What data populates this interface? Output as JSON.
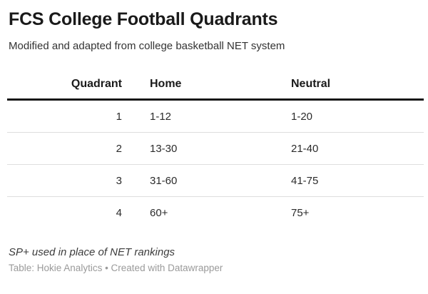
{
  "header": {
    "title": "FCS College Football Quadrants",
    "subtitle": "Modified and adapted from college basketball NET system"
  },
  "table": {
    "headers": [
      "Quadrant",
      "Home",
      "Neutral"
    ],
    "rows": [
      [
        "1",
        "1-12",
        "1-20"
      ],
      [
        "2",
        "13-30",
        "21-40"
      ],
      [
        "3",
        "31-60",
        "41-75"
      ],
      [
        "4",
        "60+",
        "75+"
      ]
    ]
  },
  "footer": {
    "footnote": "SP+ used in place of NET rankings",
    "credit": "Table: Hokie Analytics • Created with Datawrapper"
  },
  "colors": {
    "title_text": "#1a1a1a",
    "body_text": "#2b2b2b",
    "header_rule": "#161616",
    "row_separator": "#dedede",
    "footnote_text": "#3c3c3c",
    "credit_text": "#9a9a9a",
    "background": "#ffffff"
  }
}
